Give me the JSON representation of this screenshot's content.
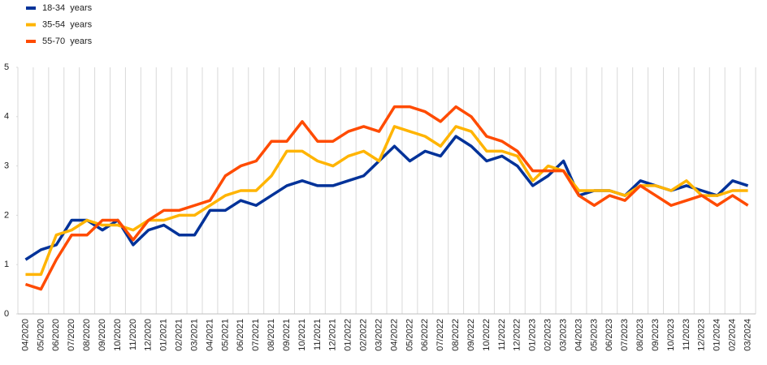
{
  "chart_data": {
    "type": "line",
    "categories": [
      "04/2020",
      "05/2020",
      "06/2020",
      "07/2020",
      "08/2020",
      "09/2020",
      "10/2020",
      "11/2020",
      "12/2020",
      "01/2021",
      "02/2021",
      "03/2021",
      "04/2021",
      "05/2021",
      "06/2021",
      "07/2021",
      "08/2021",
      "09/2021",
      "10/2021",
      "11/2021",
      "12/2021",
      "01/2022",
      "02/2022",
      "03/2022",
      "04/2022",
      "05/2022",
      "06/2022",
      "07/2022",
      "08/2022",
      "09/2022",
      "10/2022",
      "11/2022",
      "12/2022",
      "01/2023",
      "02/2023",
      "03/2023",
      "04/2023",
      "05/2023",
      "06/2023",
      "07/2023",
      "08/2023",
      "09/2023",
      "10/2023",
      "11/2023",
      "12/2023",
      "01/2024",
      "02/2024",
      "03/2024"
    ],
    "series": [
      {
        "name": "18-34  years",
        "color": "#003299",
        "values": [
          1.1,
          1.3,
          1.4,
          1.9,
          1.9,
          1.7,
          1.9,
          1.4,
          1.7,
          1.8,
          1.6,
          1.6,
          2.1,
          2.1,
          2.3,
          2.2,
          2.4,
          2.6,
          2.7,
          2.6,
          2.6,
          2.7,
          2.8,
          3.1,
          3.4,
          3.1,
          3.3,
          3.2,
          3.6,
          3.4,
          3.1,
          3.2,
          3.0,
          2.6,
          2.8,
          3.1,
          2.4,
          2.5,
          2.5,
          2.4,
          2.7,
          2.6,
          2.5,
          2.6,
          2.5,
          2.4,
          2.7,
          2.6
        ]
      },
      {
        "name": "35-54  years",
        "color": "#ffb400",
        "values": [
          0.8,
          0.8,
          1.6,
          1.7,
          1.9,
          1.8,
          1.8,
          1.7,
          1.9,
          1.9,
          2.0,
          2.0,
          2.2,
          2.4,
          2.5,
          2.5,
          2.8,
          3.3,
          3.3,
          3.1,
          3.0,
          3.2,
          3.3,
          3.1,
          3.8,
          3.7,
          3.6,
          3.4,
          3.8,
          3.7,
          3.3,
          3.3,
          3.2,
          2.7,
          3.0,
          2.9,
          2.5,
          2.5,
          2.5,
          2.4,
          2.6,
          2.6,
          2.5,
          2.7,
          2.4,
          2.4,
          2.5,
          2.5
        ]
      },
      {
        "name": "55-70  years",
        "color": "#ff4b00",
        "values": [
          0.6,
          0.5,
          1.1,
          1.6,
          1.6,
          1.9,
          1.9,
          1.5,
          1.9,
          2.1,
          2.1,
          2.2,
          2.3,
          2.8,
          3.0,
          3.1,
          3.5,
          3.5,
          3.9,
          3.5,
          3.5,
          3.7,
          3.8,
          3.7,
          4.2,
          4.2,
          4.1,
          3.9,
          4.2,
          4.0,
          3.6,
          3.5,
          3.3,
          2.9,
          2.9,
          2.9,
          2.4,
          2.2,
          2.4,
          2.3,
          2.6,
          2.4,
          2.2,
          2.3,
          2.4,
          2.2,
          2.4,
          2.2
        ]
      }
    ],
    "ylim": [
      0,
      5
    ],
    "yticks": [
      0,
      1,
      2,
      3,
      4,
      5
    ],
    "grid": true
  }
}
